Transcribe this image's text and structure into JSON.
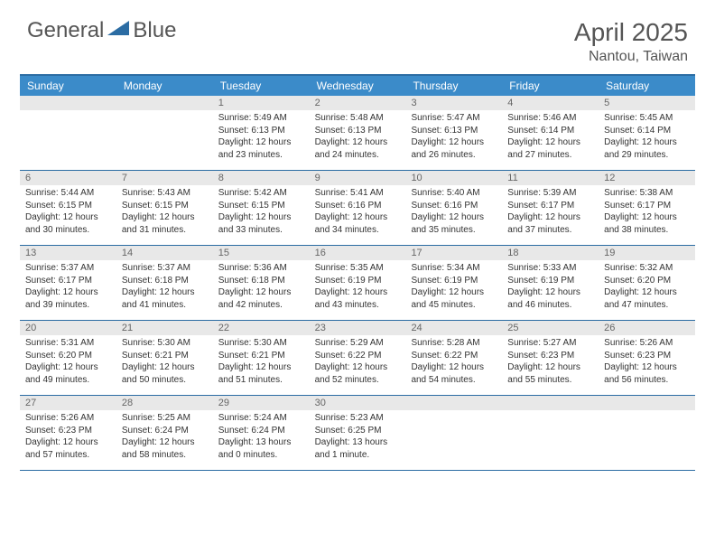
{
  "logo": {
    "part1": "General",
    "part2": "Blue"
  },
  "title": "April 2025",
  "location": "Nantou, Taiwan",
  "colors": {
    "header_bg": "#3b8bc9",
    "header_border": "#2b6ca3",
    "daynum_bg": "#e8e8e8",
    "text": "#333333",
    "muted": "#666666",
    "logo_blue": "#2b6ca3"
  },
  "day_names": [
    "Sunday",
    "Monday",
    "Tuesday",
    "Wednesday",
    "Thursday",
    "Friday",
    "Saturday"
  ],
  "weeks": [
    [
      null,
      null,
      {
        "n": "1",
        "sr": "5:49 AM",
        "ss": "6:13 PM",
        "dl": "12 hours and 23 minutes."
      },
      {
        "n": "2",
        "sr": "5:48 AM",
        "ss": "6:13 PM",
        "dl": "12 hours and 24 minutes."
      },
      {
        "n": "3",
        "sr": "5:47 AM",
        "ss": "6:13 PM",
        "dl": "12 hours and 26 minutes."
      },
      {
        "n": "4",
        "sr": "5:46 AM",
        "ss": "6:14 PM",
        "dl": "12 hours and 27 minutes."
      },
      {
        "n": "5",
        "sr": "5:45 AM",
        "ss": "6:14 PM",
        "dl": "12 hours and 29 minutes."
      }
    ],
    [
      {
        "n": "6",
        "sr": "5:44 AM",
        "ss": "6:15 PM",
        "dl": "12 hours and 30 minutes."
      },
      {
        "n": "7",
        "sr": "5:43 AM",
        "ss": "6:15 PM",
        "dl": "12 hours and 31 minutes."
      },
      {
        "n": "8",
        "sr": "5:42 AM",
        "ss": "6:15 PM",
        "dl": "12 hours and 33 minutes."
      },
      {
        "n": "9",
        "sr": "5:41 AM",
        "ss": "6:16 PM",
        "dl": "12 hours and 34 minutes."
      },
      {
        "n": "10",
        "sr": "5:40 AM",
        "ss": "6:16 PM",
        "dl": "12 hours and 35 minutes."
      },
      {
        "n": "11",
        "sr": "5:39 AM",
        "ss": "6:17 PM",
        "dl": "12 hours and 37 minutes."
      },
      {
        "n": "12",
        "sr": "5:38 AM",
        "ss": "6:17 PM",
        "dl": "12 hours and 38 minutes."
      }
    ],
    [
      {
        "n": "13",
        "sr": "5:37 AM",
        "ss": "6:17 PM",
        "dl": "12 hours and 39 minutes."
      },
      {
        "n": "14",
        "sr": "5:37 AM",
        "ss": "6:18 PM",
        "dl": "12 hours and 41 minutes."
      },
      {
        "n": "15",
        "sr": "5:36 AM",
        "ss": "6:18 PM",
        "dl": "12 hours and 42 minutes."
      },
      {
        "n": "16",
        "sr": "5:35 AM",
        "ss": "6:19 PM",
        "dl": "12 hours and 43 minutes."
      },
      {
        "n": "17",
        "sr": "5:34 AM",
        "ss": "6:19 PM",
        "dl": "12 hours and 45 minutes."
      },
      {
        "n": "18",
        "sr": "5:33 AM",
        "ss": "6:19 PM",
        "dl": "12 hours and 46 minutes."
      },
      {
        "n": "19",
        "sr": "5:32 AM",
        "ss": "6:20 PM",
        "dl": "12 hours and 47 minutes."
      }
    ],
    [
      {
        "n": "20",
        "sr": "5:31 AM",
        "ss": "6:20 PM",
        "dl": "12 hours and 49 minutes."
      },
      {
        "n": "21",
        "sr": "5:30 AM",
        "ss": "6:21 PM",
        "dl": "12 hours and 50 minutes."
      },
      {
        "n": "22",
        "sr": "5:30 AM",
        "ss": "6:21 PM",
        "dl": "12 hours and 51 minutes."
      },
      {
        "n": "23",
        "sr": "5:29 AM",
        "ss": "6:22 PM",
        "dl": "12 hours and 52 minutes."
      },
      {
        "n": "24",
        "sr": "5:28 AM",
        "ss": "6:22 PM",
        "dl": "12 hours and 54 minutes."
      },
      {
        "n": "25",
        "sr": "5:27 AM",
        "ss": "6:23 PM",
        "dl": "12 hours and 55 minutes."
      },
      {
        "n": "26",
        "sr": "5:26 AM",
        "ss": "6:23 PM",
        "dl": "12 hours and 56 minutes."
      }
    ],
    [
      {
        "n": "27",
        "sr": "5:26 AM",
        "ss": "6:23 PM",
        "dl": "12 hours and 57 minutes."
      },
      {
        "n": "28",
        "sr": "5:25 AM",
        "ss": "6:24 PM",
        "dl": "12 hours and 58 minutes."
      },
      {
        "n": "29",
        "sr": "5:24 AM",
        "ss": "6:24 PM",
        "dl": "13 hours and 0 minutes."
      },
      {
        "n": "30",
        "sr": "5:23 AM",
        "ss": "6:25 PM",
        "dl": "13 hours and 1 minute."
      },
      null,
      null,
      null
    ]
  ],
  "labels": {
    "sunrise": "Sunrise: ",
    "sunset": "Sunset: ",
    "daylight": "Daylight: "
  }
}
